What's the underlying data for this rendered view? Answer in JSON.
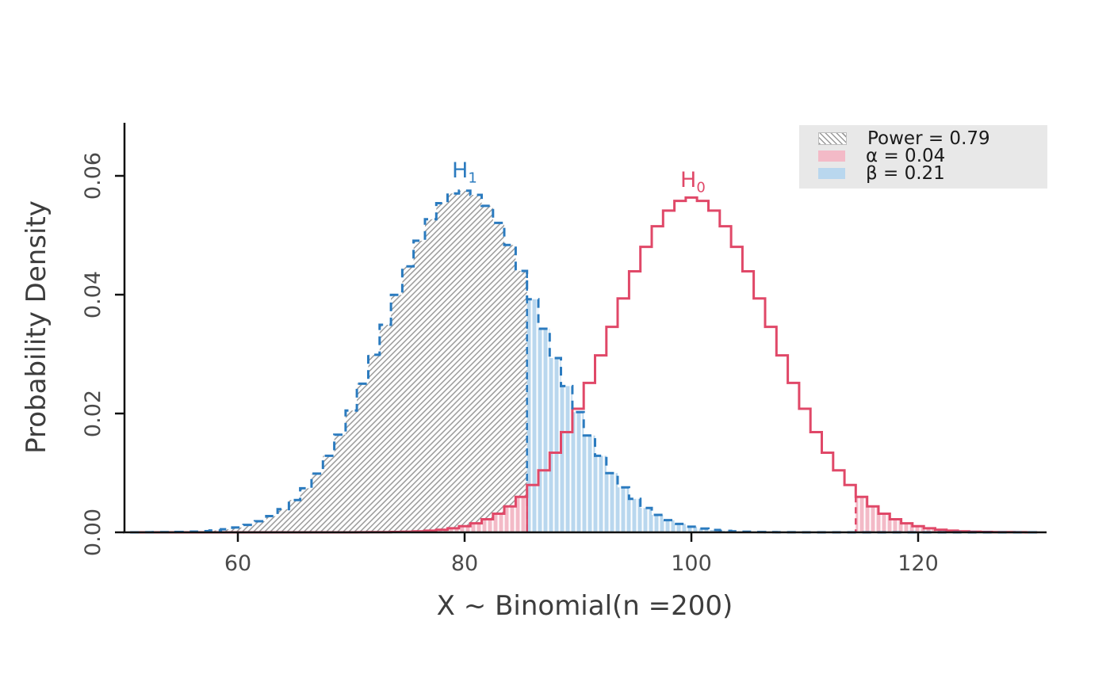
{
  "chart_data": {
    "type": "line",
    "subtype": "step-histogram-pmf",
    "title": "",
    "xlabel": "X ~ Binomial(n =200)",
    "ylabel": "Probability Density",
    "xlim": [
      50,
      131
    ],
    "ylim": [
      0,
      0.069
    ],
    "grid": false,
    "x_ticks": [
      {
        "value": 60,
        "label": "60"
      },
      {
        "value": 80,
        "label": "80"
      },
      {
        "value": 100,
        "label": "100"
      },
      {
        "value": 120,
        "label": "120"
      }
    ],
    "y_ticks": [
      {
        "value": 0.0,
        "label": "0.00"
      },
      {
        "value": 0.02,
        "label": "0.02"
      },
      {
        "value": 0.04,
        "label": "0.04"
      },
      {
        "value": 0.06,
        "label": "0.06"
      }
    ],
    "series": [
      {
        "name": "H1",
        "distribution": "binomial",
        "n": 200,
        "p": 0.4,
        "mean": 80,
        "peak_density": 0.057,
        "color": "#2b7bbf",
        "line_style": "dashed"
      },
      {
        "name": "H0",
        "distribution": "binomial",
        "n": 200,
        "p": 0.5,
        "mean": 100,
        "peak_density": 0.056,
        "color": "#e04868",
        "line_style": "solid"
      }
    ],
    "critical_values": {
      "lower": 85.5,
      "upper": 114.5
    },
    "regions": [
      {
        "name": "power",
        "value": 0.79,
        "under": "H1",
        "k_range": [
          51,
          85
        ],
        "fill": "gray-hatch",
        "hatch_color": "#9a9a9a"
      },
      {
        "name": "beta",
        "value": 0.21,
        "under": "H1",
        "k_range": [
          86,
          130
        ],
        "fill": "#b9d7ee",
        "stripe": "#ffffff"
      },
      {
        "name": "alpha",
        "value": 0.04,
        "under": "H0",
        "k_ranges": [
          [
            51,
            85
          ],
          [
            115,
            130
          ]
        ],
        "fill": "#f3bac7",
        "stripe": "#ffffff"
      }
    ],
    "curve_labels": [
      {
        "text": "H",
        "sub": "1",
        "color": "#2b7bbf"
      },
      {
        "text": "H",
        "sub": "0",
        "color": "#e04868"
      }
    ],
    "legend": {
      "position": "top-right",
      "background": "#e8e8e8",
      "entries": [
        {
          "swatch": "gray-hatch",
          "label": "Power = 0.79"
        },
        {
          "swatch": "#f3bac7",
          "label": "α = 0.04"
        },
        {
          "swatch": "#b9d7ee",
          "label": "β = 0.21"
        }
      ]
    },
    "colors": {
      "h1_line": "#2b7bbf",
      "h0_line": "#e04868",
      "beta_fill": "#b9d7ee",
      "alpha_fill": "#f3bac7",
      "hatch_gray": "#9a9a9a",
      "axis": "#111111",
      "tick_label": "#4a4a4a",
      "axis_title": "#3d3d3d",
      "legend_bg": "#e8e8e8"
    }
  }
}
